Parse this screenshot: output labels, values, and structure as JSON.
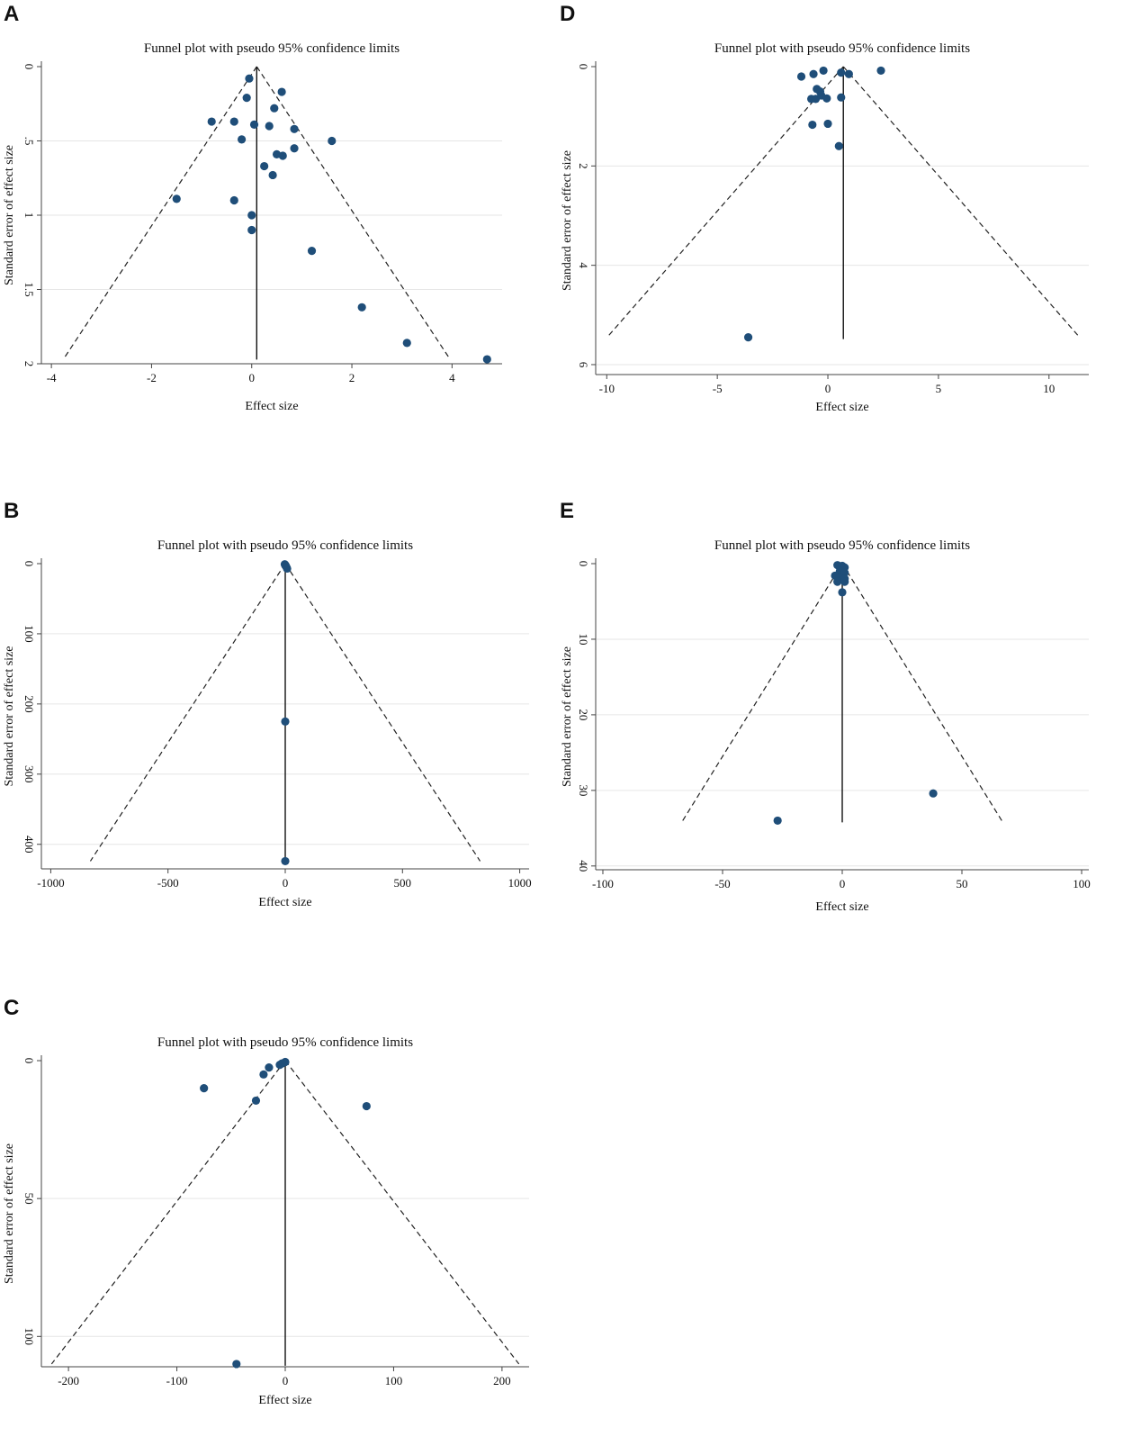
{
  "figure": {
    "panels": [
      "A",
      "B",
      "C",
      "D",
      "E"
    ]
  },
  "chart_data": [
    {
      "panel": "A",
      "type": "scatter",
      "title": "Funnel plot with pseudo 95% confidence limits",
      "xlabel": "Effect size",
      "ylabel": "Standard error of effect size",
      "xlim": [
        -4.2,
        5.0
      ],
      "ylim": [
        0,
        2.0
      ],
      "y_reversed": true,
      "xticks": [
        -4,
        -2,
        0,
        2,
        4
      ],
      "xtick_labels": [
        "-4",
        "-2",
        "0",
        "2",
        "4"
      ],
      "yticks": [
        0,
        0.5,
        1,
        1.5,
        2
      ],
      "ytick_labels": [
        "0",
        ".5",
        "1",
        "1.5",
        "2"
      ],
      "pooled_effect": 0.1,
      "funnel_bottom_se": 1.96,
      "grid": true,
      "points": [
        {
          "x": -0.05,
          "y": 0.08
        },
        {
          "x": 0.6,
          "y": 0.17
        },
        {
          "x": -0.1,
          "y": 0.21
        },
        {
          "x": 0.45,
          "y": 0.28
        },
        {
          "x": -0.8,
          "y": 0.37
        },
        {
          "x": -0.35,
          "y": 0.37
        },
        {
          "x": 0.05,
          "y": 0.39
        },
        {
          "x": 0.35,
          "y": 0.4
        },
        {
          "x": 0.85,
          "y": 0.42
        },
        {
          "x": -0.2,
          "y": 0.49
        },
        {
          "x": 1.6,
          "y": 0.5
        },
        {
          "x": 0.85,
          "y": 0.55
        },
        {
          "x": 0.5,
          "y": 0.59
        },
        {
          "x": 0.62,
          "y": 0.6
        },
        {
          "x": 0.25,
          "y": 0.67
        },
        {
          "x": 0.42,
          "y": 0.73
        },
        {
          "x": -1.5,
          "y": 0.89
        },
        {
          "x": -0.35,
          "y": 0.9
        },
        {
          "x": 0.0,
          "y": 1.0
        },
        {
          "x": 0.0,
          "y": 1.1
        },
        {
          "x": 1.2,
          "y": 1.24
        },
        {
          "x": 2.2,
          "y": 1.62
        },
        {
          "x": 3.1,
          "y": 1.86
        },
        {
          "x": 4.7,
          "y": 1.97
        }
      ]
    },
    {
      "panel": "B",
      "type": "scatter",
      "title": "Funnel plot with pseudo 95% confidence limits",
      "xlabel": "Effect size",
      "ylabel": "Standard error of effect size",
      "xlim": [
        -1040,
        1040
      ],
      "ylim": [
        0,
        435
      ],
      "y_reversed": true,
      "xticks": [
        -1000,
        -500,
        0,
        500,
        1000
      ],
      "xtick_labels": [
        "-1000",
        "-500",
        "0",
        "500",
        "1000"
      ],
      "yticks": [
        0,
        100,
        200,
        300,
        400
      ],
      "ytick_labels": [
        "0",
        "100",
        "200",
        "300",
        "400"
      ],
      "pooled_effect": 0,
      "funnel_bottom_se": 424,
      "grid": true,
      "points": [
        {
          "x": -2,
          "y": 1
        },
        {
          "x": 0,
          "y": 2
        },
        {
          "x": 2,
          "y": 3
        },
        {
          "x": 5,
          "y": 5
        },
        {
          "x": 8,
          "y": 7
        },
        {
          "x": 0,
          "y": 225
        },
        {
          "x": 0,
          "y": 424
        }
      ]
    },
    {
      "panel": "C",
      "type": "scatter",
      "title": "Funnel plot with pseudo 95% confidence limits",
      "xlabel": "Effect size",
      "ylabel": "Standard error of effect size",
      "xlim": [
        -225,
        225
      ],
      "ylim": [
        0,
        111
      ],
      "y_reversed": true,
      "xticks": [
        -200,
        -100,
        0,
        100,
        200
      ],
      "xtick_labels": [
        "-200",
        "-100",
        "0",
        "100",
        "200"
      ],
      "yticks": [
        0,
        50,
        100
      ],
      "ytick_labels": [
        "0",
        "50",
        "100"
      ],
      "pooled_effect": 0,
      "funnel_bottom_se": 110,
      "grid": true,
      "points": [
        {
          "x": 0,
          "y": 0.5
        },
        {
          "x": -3,
          "y": 1
        },
        {
          "x": -5,
          "y": 1.5
        },
        {
          "x": -15,
          "y": 2.5
        },
        {
          "x": -20,
          "y": 5
        },
        {
          "x": -75,
          "y": 10
        },
        {
          "x": -27,
          "y": 14.5
        },
        {
          "x": 75,
          "y": 16.5
        },
        {
          "x": -45,
          "y": 110
        }
      ]
    },
    {
      "panel": "D",
      "type": "scatter",
      "title": "Funnel plot with pseudo 95% confidence limits",
      "xlabel": "Effect size",
      "ylabel": "Standard error of effect size",
      "xlim": [
        -10.5,
        11.8
      ],
      "ylim": [
        0,
        6.2
      ],
      "y_reversed": true,
      "xticks": [
        -10,
        -5,
        0,
        5,
        10
      ],
      "xtick_labels": [
        "-10",
        "-5",
        "0",
        "5",
        "10"
      ],
      "yticks": [
        0,
        2,
        4,
        6
      ],
      "ytick_labels": [
        "0",
        "2",
        "4",
        "6"
      ],
      "pooled_effect": 0.7,
      "funnel_bottom_se": 5.45,
      "grid": true,
      "points": [
        {
          "x": -1.2,
          "y": 0.2
        },
        {
          "x": -0.2,
          "y": 0.08
        },
        {
          "x": -0.65,
          "y": 0.15
        },
        {
          "x": 0.6,
          "y": 0.12
        },
        {
          "x": 0.95,
          "y": 0.15
        },
        {
          "x": 2.4,
          "y": 0.08
        },
        {
          "x": -0.5,
          "y": 0.45
        },
        {
          "x": -0.35,
          "y": 0.5
        },
        {
          "x": -0.75,
          "y": 0.65
        },
        {
          "x": -0.55,
          "y": 0.65
        },
        {
          "x": -0.3,
          "y": 0.58
        },
        {
          "x": -0.05,
          "y": 0.64
        },
        {
          "x": 0.6,
          "y": 0.62
        },
        {
          "x": -0.7,
          "y": 1.17
        },
        {
          "x": 0.0,
          "y": 1.15
        },
        {
          "x": 0.5,
          "y": 1.6
        },
        {
          "x": -3.6,
          "y": 5.45
        }
      ]
    },
    {
      "panel": "E",
      "type": "scatter",
      "title": "Funnel plot with pseudo 95% confidence limits",
      "xlabel": "Effect size",
      "ylabel": "Standard error of effect size",
      "xlim": [
        -103,
        103
      ],
      "ylim": [
        0,
        40.5
      ],
      "y_reversed": true,
      "xticks": [
        -100,
        -50,
        0,
        50,
        100
      ],
      "xtick_labels": [
        "-100",
        "-50",
        "0",
        "50",
        "100"
      ],
      "yticks": [
        0,
        10,
        20,
        30,
        40
      ],
      "ytick_labels": [
        "0",
        "10",
        "20",
        "30",
        "40"
      ],
      "pooled_effect": 0,
      "funnel_bottom_se": 34,
      "grid": true,
      "points": [
        {
          "x": -2,
          "y": 0.2
        },
        {
          "x": 0,
          "y": 0.3
        },
        {
          "x": 1,
          "y": 0.5
        },
        {
          "x": -1,
          "y": 1.0
        },
        {
          "x": 1,
          "y": 1.2
        },
        {
          "x": -3,
          "y": 1.6
        },
        {
          "x": -1,
          "y": 1.8
        },
        {
          "x": 1,
          "y": 2.0
        },
        {
          "x": -2,
          "y": 2.4
        },
        {
          "x": 1,
          "y": 2.4
        },
        {
          "x": 0,
          "y": 3.8
        },
        {
          "x": 38,
          "y": 30.4
        },
        {
          "x": -27,
          "y": 34
        }
      ]
    }
  ]
}
